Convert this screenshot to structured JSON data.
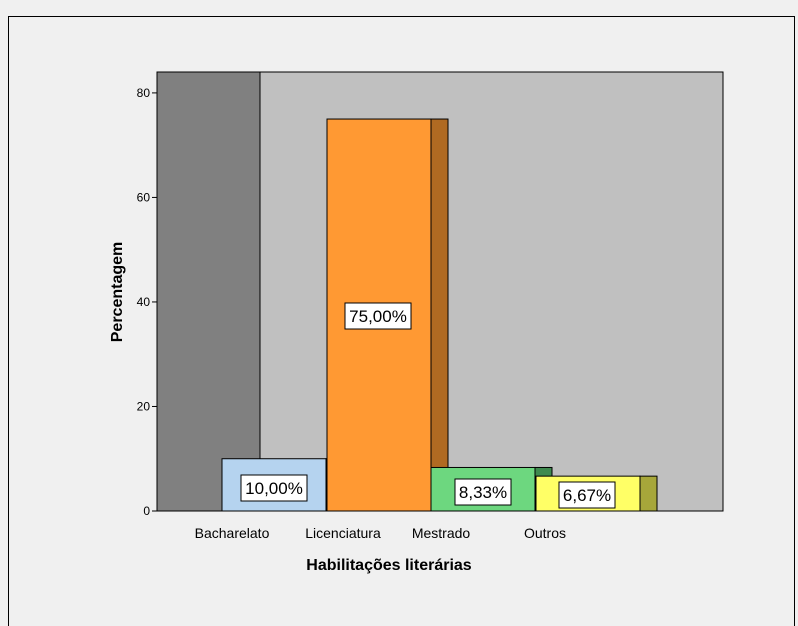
{
  "chart_data": {
    "type": "bar",
    "categories": [
      "Bacharelato",
      "Licenciatura",
      "Mestrado",
      "Outros"
    ],
    "values": [
      10.0,
      75.0,
      8.33,
      6.67
    ],
    "data_labels": [
      "10,00%",
      "75,00%",
      "8,33%",
      "6,67%"
    ],
    "xlabel": "Habilitações literárias",
    "ylabel": "Percentagem",
    "ylim": [
      0,
      84
    ],
    "yticks": [
      0,
      20,
      40,
      60,
      80
    ],
    "bar_style": "3d",
    "grid": false,
    "legend": "none",
    "colors": {
      "background": "#f0f0f0",
      "plot_background": "#c0c0c0",
      "back_wall": "#808080",
      "bars": [
        "#b5d3ef",
        "#ff9933",
        "#6dd77f",
        "#ffff66"
      ],
      "bar_sides": [
        "#5a7a9a",
        "#b06a22",
        "#3f8a4f",
        "#a7a73a"
      ]
    }
  }
}
